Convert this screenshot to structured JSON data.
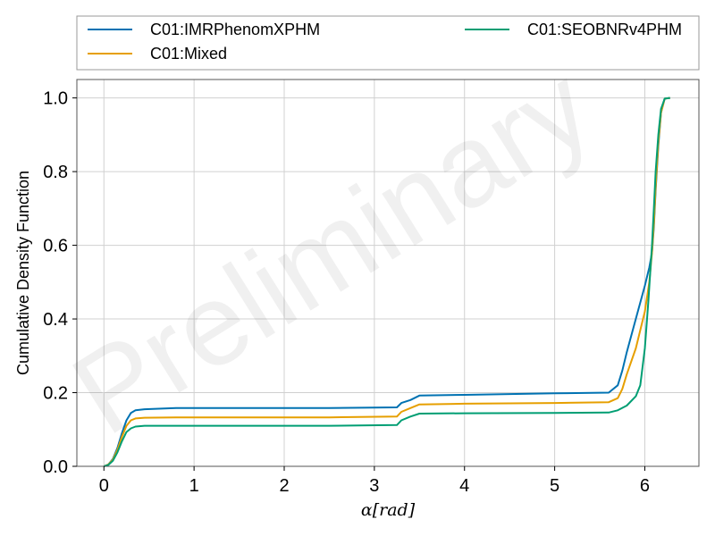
{
  "chart_data": {
    "type": "line",
    "title": "",
    "xlabel": "α[rad]",
    "ylabel": "Cumulative Density Function",
    "xlim": [
      -0.3,
      6.6
    ],
    "ylim": [
      0,
      1.05
    ],
    "xticks": [
      0,
      1,
      2,
      3,
      4,
      5,
      6
    ],
    "xtick_labels": [
      "0",
      "1",
      "2",
      "3",
      "4",
      "5",
      "6"
    ],
    "yticks": [
      0.0,
      0.2,
      0.4,
      0.6,
      0.8,
      1.0
    ],
    "ytick_labels": [
      "0.0",
      "0.2",
      "0.4",
      "0.6",
      "0.8",
      "1.0"
    ],
    "grid": true,
    "legend_position": "top, above plot",
    "watermark": "Preliminary",
    "series": [
      {
        "name": "C01:IMRPhenomXPHM",
        "color": "#0072b2",
        "x": [
          0,
          0.05,
          0.1,
          0.15,
          0.2,
          0.25,
          0.3,
          0.35,
          0.45,
          0.8,
          1.5,
          2.5,
          3.25,
          3.3,
          3.4,
          3.5,
          4.0,
          5.0,
          5.6,
          5.7,
          5.75,
          5.8,
          5.9,
          6.0,
          6.05,
          6.08,
          6.1,
          6.12,
          6.15,
          6.18,
          6.22,
          6.28
        ],
        "y": [
          0.0,
          0.005,
          0.02,
          0.05,
          0.09,
          0.125,
          0.145,
          0.152,
          0.155,
          0.158,
          0.158,
          0.158,
          0.16,
          0.172,
          0.18,
          0.192,
          0.194,
          0.198,
          0.2,
          0.22,
          0.26,
          0.31,
          0.4,
          0.49,
          0.54,
          0.58,
          0.65,
          0.75,
          0.87,
          0.96,
          0.998,
          1.0
        ]
      },
      {
        "name": "C01:Mixed",
        "color": "#e69f00",
        "x": [
          0,
          0.05,
          0.1,
          0.15,
          0.2,
          0.25,
          0.3,
          0.35,
          0.45,
          0.8,
          1.5,
          2.5,
          3.25,
          3.3,
          3.4,
          3.5,
          4.0,
          5.0,
          5.6,
          5.7,
          5.75,
          5.8,
          5.9,
          6.0,
          6.05,
          6.08,
          6.1,
          6.12,
          6.15,
          6.18,
          6.22,
          6.28
        ],
        "y": [
          0.0,
          0.005,
          0.018,
          0.045,
          0.08,
          0.11,
          0.125,
          0.13,
          0.132,
          0.133,
          0.133,
          0.133,
          0.135,
          0.148,
          0.158,
          0.168,
          0.17,
          0.172,
          0.174,
          0.185,
          0.21,
          0.25,
          0.32,
          0.42,
          0.5,
          0.58,
          0.66,
          0.76,
          0.88,
          0.96,
          0.998,
          1.0
        ]
      },
      {
        "name": "C01:SEOBNRv4PHM",
        "color": "#009e73",
        "x": [
          0,
          0.05,
          0.1,
          0.15,
          0.2,
          0.25,
          0.3,
          0.35,
          0.45,
          0.8,
          1.5,
          2.5,
          3.25,
          3.3,
          3.4,
          3.5,
          4.0,
          5.0,
          5.6,
          5.7,
          5.8,
          5.9,
          5.95,
          6.0,
          6.04,
          6.08,
          6.1,
          6.12,
          6.15,
          6.18,
          6.22,
          6.28
        ],
        "y": [
          0.0,
          0.004,
          0.015,
          0.038,
          0.068,
          0.093,
          0.103,
          0.108,
          0.11,
          0.11,
          0.11,
          0.11,
          0.112,
          0.125,
          0.135,
          0.143,
          0.144,
          0.145,
          0.146,
          0.152,
          0.165,
          0.19,
          0.22,
          0.32,
          0.45,
          0.6,
          0.7,
          0.8,
          0.9,
          0.97,
          0.998,
          1.0
        ]
      }
    ]
  }
}
